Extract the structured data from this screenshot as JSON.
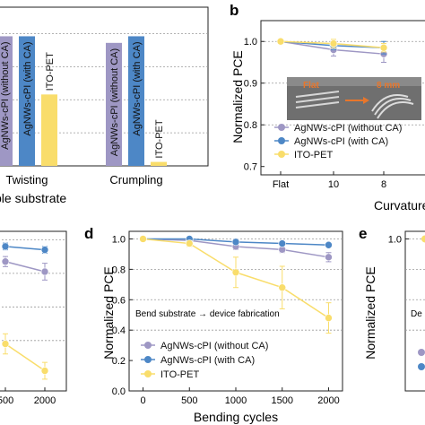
{
  "colors": {
    "without_ca": "#9e97c4",
    "with_ca": "#4d87c6",
    "ito": "#f9dd6b",
    "grid": "#9a9a9a",
    "axis": "#222222"
  },
  "panels": {
    "a": {
      "letter": "",
      "xlabel_left": "ble substrate"
    },
    "b": {
      "letter": "b",
      "ylabel": "Normalized PCE",
      "xlabel": "Curvature",
      "inset_flat": "Flat",
      "inset_8mm": "8 mm"
    },
    "c": {
      "letter": ""
    },
    "d": {
      "letter": "d",
      "ylabel": "Normalized PCE",
      "xlabel": "Bending cycles",
      "annotation": "Bend substrate → device fabrication"
    },
    "e": {
      "letter": "e",
      "ylabel": "Normalized PCE",
      "annotation": "De"
    }
  },
  "chart_data": [
    {
      "panel": "a",
      "type": "bar",
      "categories": [
        "Twisting",
        "Crumpling"
      ],
      "series": [
        {
          "name": "AgNWs-cPI (without CA)",
          "values": [
            0.98,
            0.93
          ]
        },
        {
          "name": "AgNWs-cPI (with CA)",
          "values": [
            0.98,
            0.98
          ]
        },
        {
          "name": "ITO-PET",
          "values": [
            0.54,
            0.03
          ]
        }
      ],
      "ylim": [
        0,
        1.2
      ],
      "grid": true
    },
    {
      "panel": "b",
      "type": "line",
      "x": [
        "Flat",
        "10",
        "8"
      ],
      "series": [
        {
          "name": "AgNWs-cPI (without CA)",
          "values": [
            1.0,
            0.98,
            0.97
          ],
          "errors": [
            0.005,
            0.015,
            0.02
          ]
        },
        {
          "name": "AgNWs-cPI (with CA)",
          "values": [
            1.0,
            0.99,
            0.985
          ],
          "errors": [
            0.005,
            0.01,
            0.015
          ]
        },
        {
          "name": "ITO-PET",
          "values": [
            1.0,
            0.995,
            0.985
          ],
          "errors": [
            0.005,
            0.01,
            0.01
          ]
        }
      ],
      "yticks": [
        "0.7",
        "0.8",
        "0.9",
        "1.0"
      ],
      "ylim": [
        0.68,
        1.05
      ],
      "ylabel": "Normalized PCE",
      "xlabel": "Curvature",
      "legend": "bottom-left",
      "grid": true
    },
    {
      "panel": "c",
      "type": "line",
      "x": [
        "500",
        "2000"
      ],
      "series": [
        {
          "name": "AgNWs-cPI (without CA)",
          "values": [
            0.87,
            0.81
          ],
          "errors": [
            0.03,
            0.05
          ]
        },
        {
          "name": "AgNWs-cPI (with CA)",
          "values": [
            0.96,
            0.94
          ],
          "errors": [
            0.02,
            0.02
          ]
        },
        {
          "name": "ITO-PET",
          "values": [
            0.38,
            0.22
          ],
          "errors": [
            0.06,
            0.05
          ]
        }
      ],
      "ylim": [
        0.1,
        1.05
      ],
      "grid": true
    },
    {
      "panel": "d",
      "type": "line",
      "x": [
        0,
        500,
        1000,
        1500,
        2000
      ],
      "series": [
        {
          "name": "AgNWs-cPI (without CA)",
          "values": [
            1.0,
            0.99,
            0.95,
            0.93,
            0.88
          ],
          "errors": [
            0.005,
            0.01,
            0.02,
            0.02,
            0.03
          ]
        },
        {
          "name": "AgNWs-cPI (with CA)",
          "values": [
            1.0,
            1.0,
            0.98,
            0.97,
            0.96
          ],
          "errors": [
            0.005,
            0.01,
            0.01,
            0.01,
            0.01
          ]
        },
        {
          "name": "ITO-PET",
          "values": [
            1.0,
            0.97,
            0.78,
            0.68,
            0.48
          ],
          "errors": [
            0.005,
            0.02,
            0.1,
            0.14,
            0.1
          ]
        }
      ],
      "yticks": [
        "0.0",
        "0.2",
        "0.4",
        "0.6",
        "0.8",
        "1.0"
      ],
      "xticks": [
        "0",
        "500",
        "1000",
        "1500",
        "2000"
      ],
      "ylim": [
        0,
        1.05
      ],
      "xlim": [
        -150,
        2150
      ],
      "ylabel": "Normalized PCE",
      "xlabel": "Bending cycles",
      "legend": "bottom-left",
      "grid": true
    },
    {
      "panel": "e",
      "type": "line",
      "x": [
        0
      ],
      "series": [
        {
          "name": "ITO-PET",
          "values": [
            1.0
          ]
        }
      ],
      "yticks": [
        "1.0"
      ],
      "ylabel": "Normalized PCE",
      "grid": true
    }
  ]
}
